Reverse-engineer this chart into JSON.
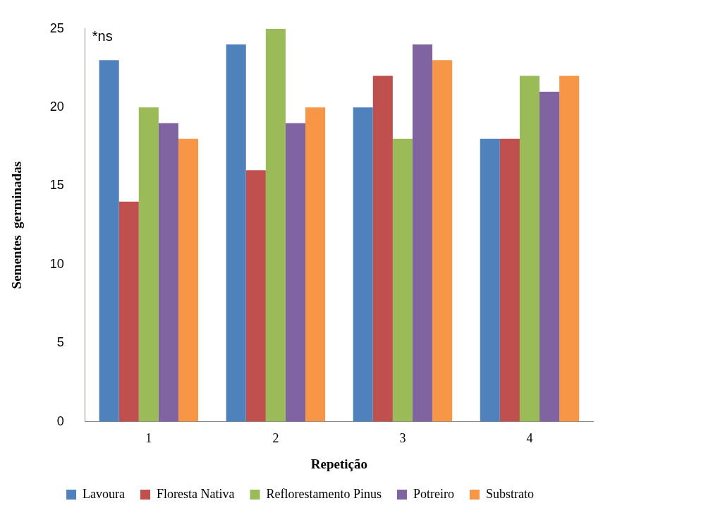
{
  "chart_data": {
    "type": "bar",
    "xlabel": "Repetição",
    "ylabel": "Sementes  germinadas",
    "categories": [
      "1",
      "2",
      "3",
      "4"
    ],
    "series": [
      {
        "name": "Lavoura",
        "color": "#4f81bd",
        "values": [
          23,
          24,
          20,
          18
        ]
      },
      {
        "name": "Floresta Nativa",
        "color": "#c0504d",
        "values": [
          14,
          16,
          22,
          18
        ]
      },
      {
        "name": "Reflorestamento Pinus",
        "color": "#9bbb59",
        "values": [
          20,
          25,
          18,
          22
        ]
      },
      {
        "name": "Potreiro",
        "color": "#8064a2",
        "values": [
          19,
          19,
          24,
          21
        ]
      },
      {
        "name": "Substrato",
        "color": "#f79646",
        "values": [
          18,
          20,
          23,
          22
        ]
      }
    ],
    "ylim": [
      0,
      25
    ],
    "yticks": [
      0,
      5,
      10,
      15,
      20,
      25
    ],
    "grid": false,
    "legend": "bottom",
    "annotations": [
      "*ns"
    ]
  }
}
